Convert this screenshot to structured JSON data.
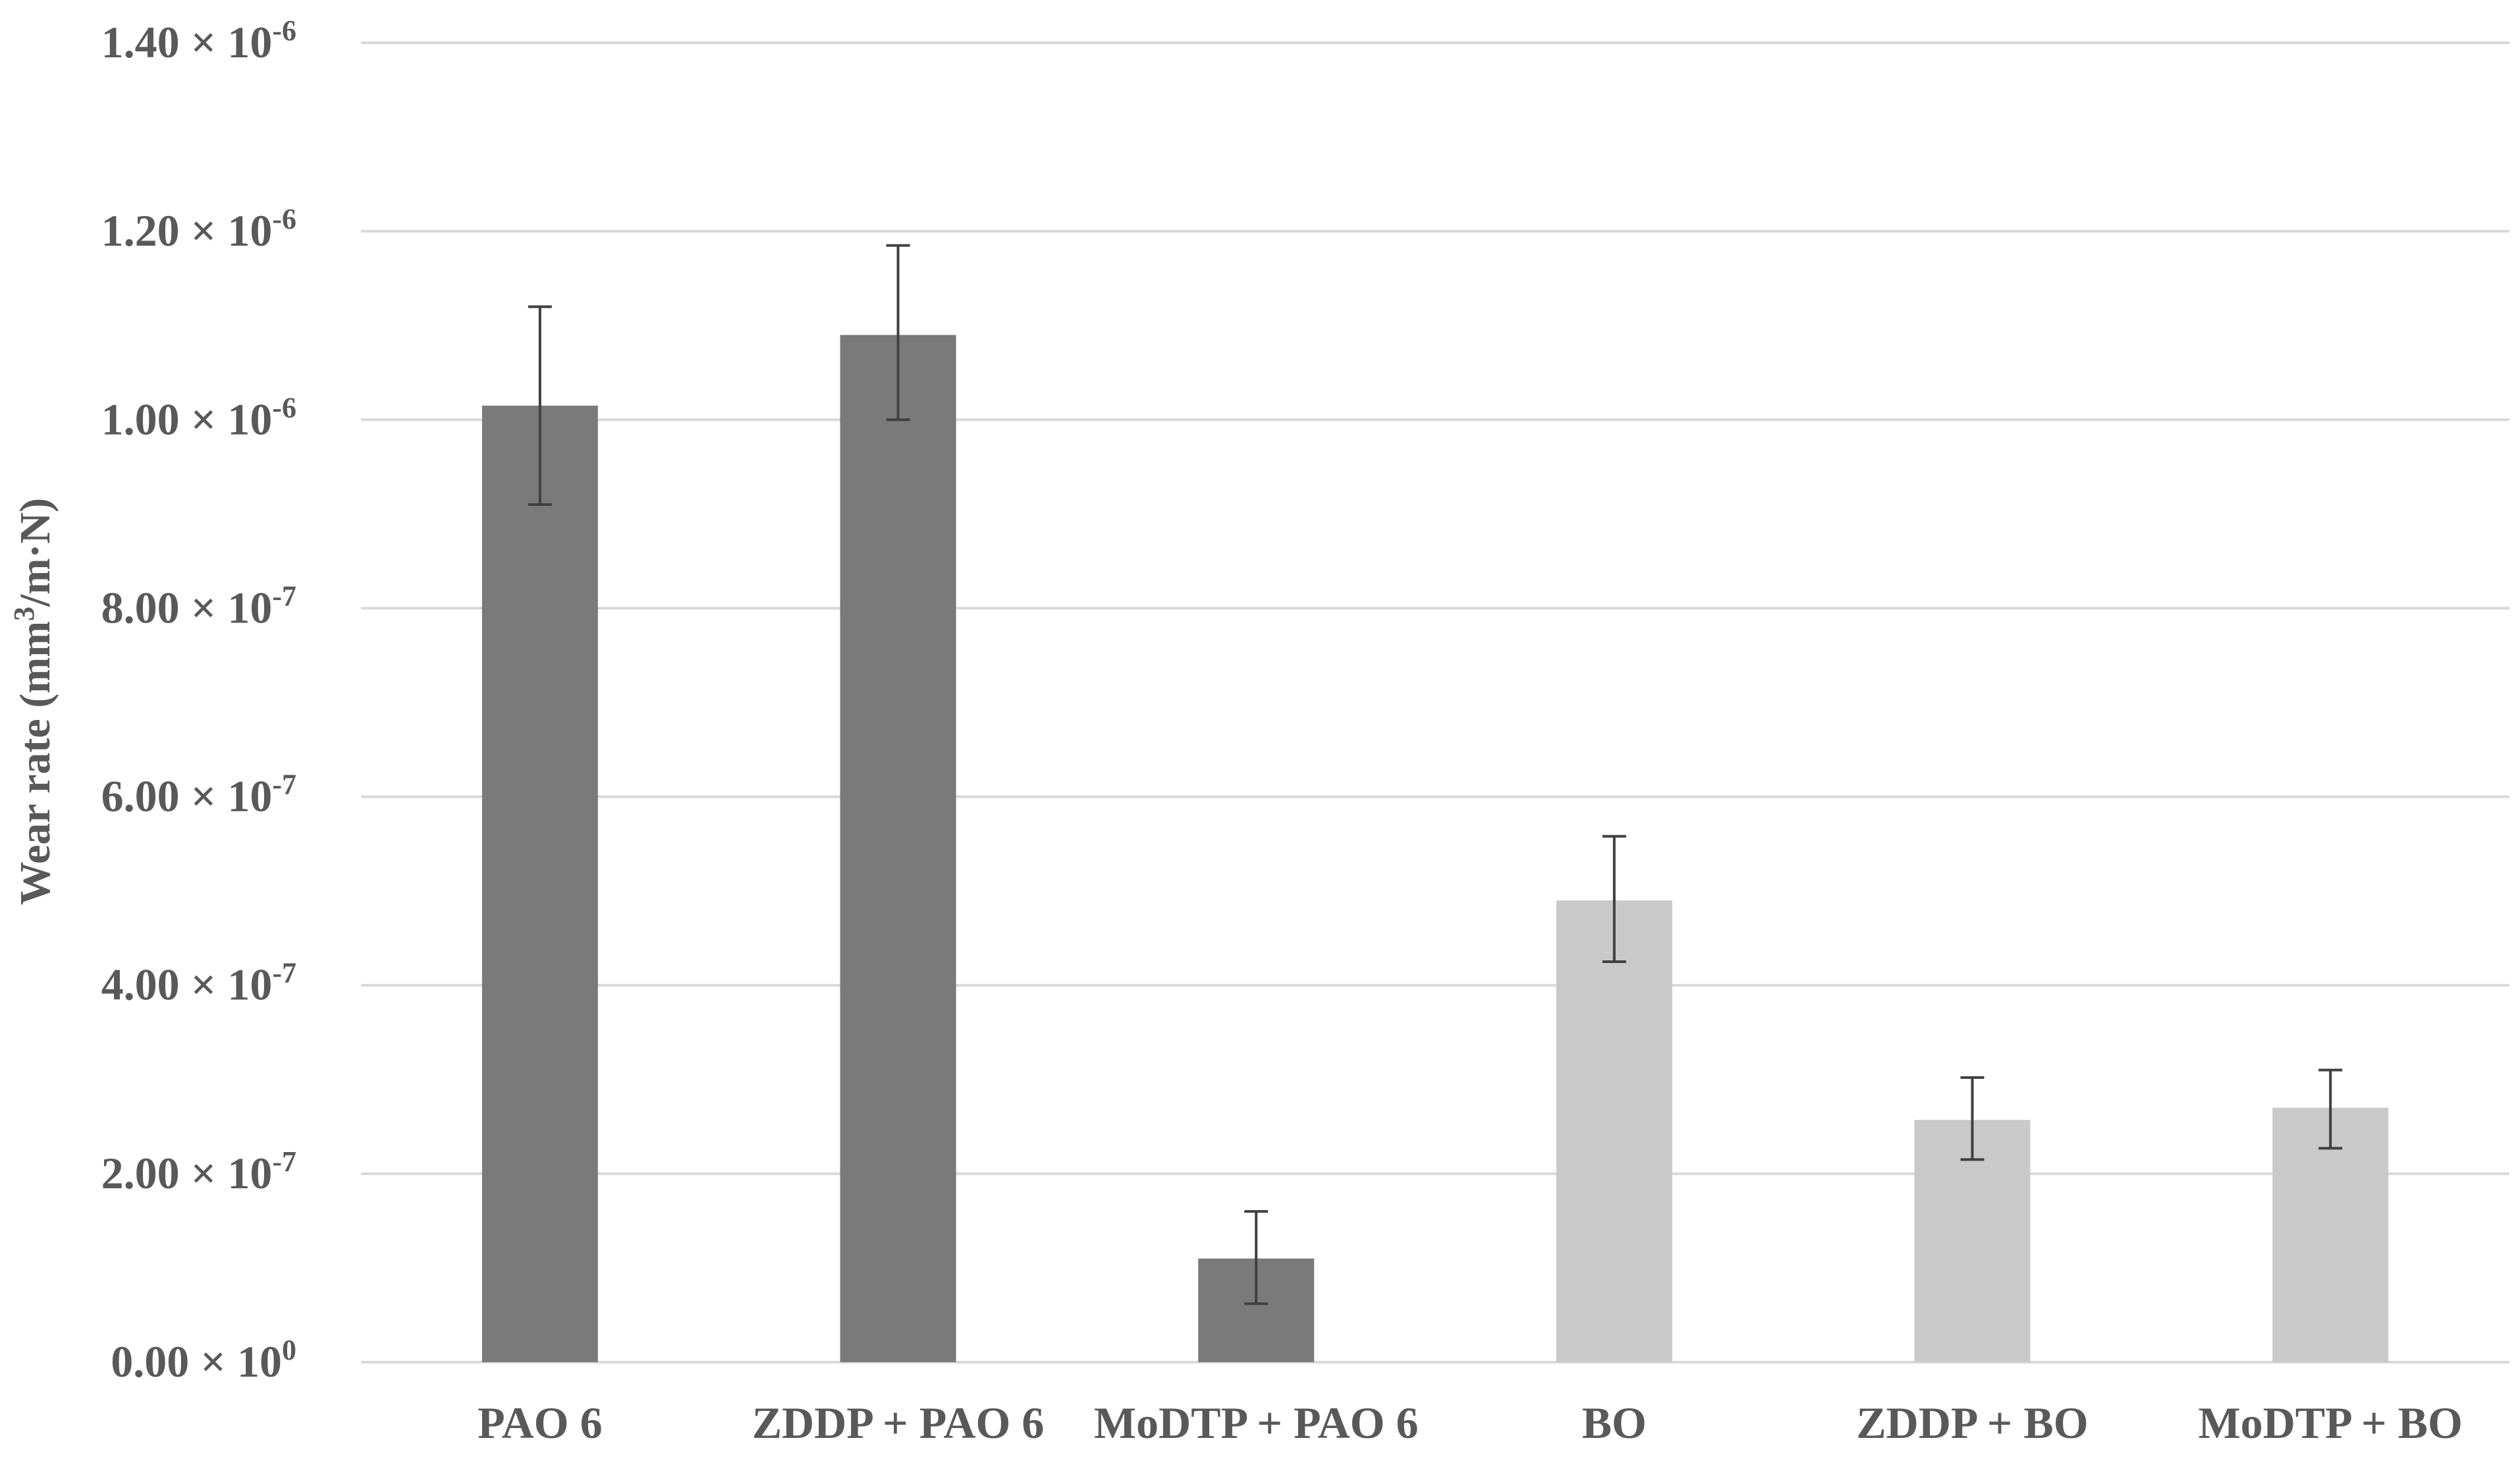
{
  "chart_data": {
    "type": "bar",
    "title": "",
    "xlabel": "",
    "ylabel": {
      "prefix": "Wear rate (mm",
      "sup": "3",
      "suffix": "/m·N)"
    },
    "ylim": [
      0,
      1.4e-06
    ],
    "grid": true,
    "y_ticks": [
      {
        "value": 0,
        "mantissa": "0.00",
        "exponent": "0"
      },
      {
        "value": 2e-07,
        "mantissa": "2.00",
        "exponent": "-7"
      },
      {
        "value": 4e-07,
        "mantissa": "4.00",
        "exponent": "-7"
      },
      {
        "value": 6e-07,
        "mantissa": "6.00",
        "exponent": "-7"
      },
      {
        "value": 8e-07,
        "mantissa": "8.00",
        "exponent": "-7"
      },
      {
        "value": 1e-06,
        "mantissa": "1.00",
        "exponent": "-6"
      },
      {
        "value": 1.2e-06,
        "mantissa": "1.20",
        "exponent": "-6"
      },
      {
        "value": 1.4e-06,
        "mantissa": "1.40",
        "exponent": "-6"
      }
    ],
    "tick_times": "× 10",
    "categories": [
      "PAO 6",
      "ZDDP + PAO 6",
      "MoDTP + PAO 6",
      "BO",
      "ZDDP + BO",
      "MoDTP + BO"
    ],
    "values": [
      1.015e-06,
      1.09e-06,
      1.1e-07,
      4.9e-07,
      2.57e-07,
      2.7e-07
    ],
    "error_low": [
      9.1e-07,
      1e-06,
      6.2e-08,
      4.25e-07,
      2.15e-07,
      2.27e-07
    ],
    "error_high": [
      1.12e-06,
      1.185e-06,
      1.6e-07,
      5.58e-07,
      3.02e-07,
      3.1e-07
    ],
    "bar_colors": [
      "#7a7a7a",
      "#7a7a7a",
      "#7a7a7a",
      "#c9c9c9",
      "#c9c9c9",
      "#c9c9c9"
    ],
    "gridline_color": "#d9d9d9",
    "errorbar_color": "#404040"
  }
}
